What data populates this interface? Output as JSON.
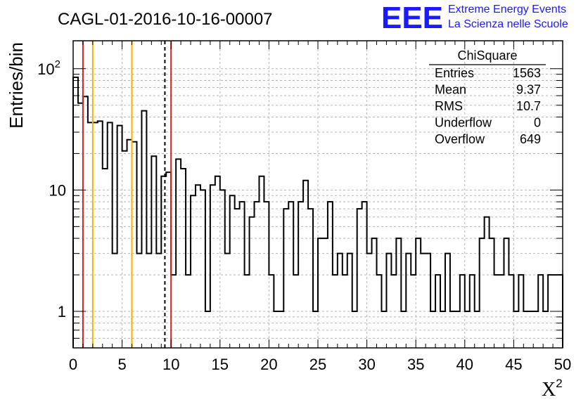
{
  "title": "CAGL-01-2016-10-16-00007",
  "logo": {
    "text": "EEE",
    "line1": "Extreme Energy Events",
    "line2": "La Scienza nelle Scuole",
    "color": "#1a1aff"
  },
  "stats": {
    "name": "ChiSquare",
    "rows": [
      {
        "label": "Entries",
        "value": "1563"
      },
      {
        "label": "Mean",
        "value": "9.37"
      },
      {
        "label": "RMS",
        "value": "10.7"
      },
      {
        "label": "Underflow",
        "value": "0"
      },
      {
        "label": "Overflow",
        "value": "649"
      }
    ]
  },
  "chart_data": {
    "type": "histogram",
    "xlabel": "X",
    "xlabel_sup": "2",
    "ylabel": "Entries/bin",
    "xlim": [
      0,
      50
    ],
    "ylim": [
      0.5,
      170
    ],
    "yscale": "log",
    "grid": true,
    "x_ticks": [
      0,
      5,
      10,
      15,
      20,
      25,
      30,
      35,
      40,
      45,
      50
    ],
    "y_ticks": [
      {
        "value": 1,
        "label": "1"
      },
      {
        "value": 10,
        "label": "10"
      },
      {
        "value": 100,
        "label": "10",
        "sup": "2"
      }
    ],
    "bin_width": 0.5,
    "values": [
      85,
      52,
      59,
      36,
      36,
      37,
      15,
      36,
      3,
      34,
      21,
      26,
      25,
      3,
      45,
      3,
      19,
      3,
      13,
      14,
      2,
      18,
      15,
      2,
      9,
      11,
      10,
      1,
      11,
      13,
      10,
      3,
      9,
      7,
      8,
      2,
      6,
      8,
      13,
      8,
      2,
      1,
      1,
      7,
      8,
      2,
      8,
      12,
      7,
      1,
      4,
      4,
      8,
      2,
      3,
      2,
      3,
      1,
      7,
      8,
      3,
      4,
      2,
      1,
      3,
      2,
      4,
      1,
      3,
      2,
      4,
      3,
      3,
      1,
      2,
      1,
      3,
      1,
      1,
      2,
      1,
      2,
      1,
      4,
      6,
      4,
      2,
      2,
      4,
      2,
      1,
      2,
      1,
      1,
      1,
      2,
      1,
      2,
      2,
      2
    ],
    "lines": [
      {
        "x": 1,
        "color": "#d42020",
        "style": "solid"
      },
      {
        "x": 2,
        "color": "#f0b400",
        "style": "solid"
      },
      {
        "x": 6,
        "color": "#f0b400",
        "style": "solid"
      },
      {
        "x": 9.37,
        "color": "#000000",
        "style": "dashed"
      },
      {
        "x": 10,
        "color": "#d42020",
        "style": "solid"
      }
    ]
  }
}
